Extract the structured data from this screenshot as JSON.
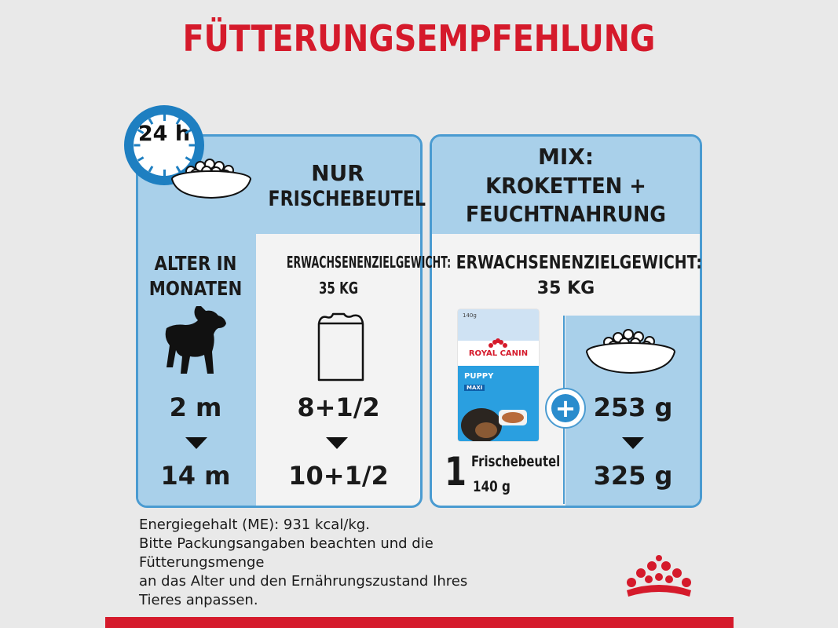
{
  "title": "FÜTTERUNGSEMPFEHLUNG",
  "clock": {
    "label": "24 h"
  },
  "left_panel": {
    "header": [
      "NUR",
      "FRISCHEBEUTEL"
    ],
    "age_label": [
      "ALTER IN",
      "MONATEN"
    ],
    "weight_label": "ERWACHSENENZIELGEWICHT:",
    "weight_value": "35 KG",
    "age_start": "2 m",
    "age_end": "14 m",
    "pouch_start": "8+1/2",
    "pouch_end": "10+1/2"
  },
  "right_panel": {
    "header": [
      "MIX:",
      "KROKETTEN +",
      "FEUCHTNAHRUNG"
    ],
    "weight_label": "ERWACHSENENZIELGEWICHT:",
    "weight_value": "35 KG",
    "pouch_count": "1",
    "pouch_label": "Frischebeutel",
    "pouch_weight": "140 g",
    "kibble_start": "253 g",
    "kibble_end": "325 g",
    "plus": "+"
  },
  "product": {
    "brand": "ROYAL CANIN",
    "weight": "140g",
    "name": "PUPPY",
    "variant": "MAXI"
  },
  "footer": [
    "Energiegehalt (ME): 931 kcal/kg.",
    "Bitte Packungsangaben beachten und die",
    "Fütterungsmenge",
    "an das Alter und den Ernährungszustand Ihres",
    "Tieres anpassen."
  ],
  "colors": {
    "brand_red": "#d51a2b",
    "panel_blue": "#a9d0ea",
    "border_blue": "#4a9bd1",
    "clock_blue": "#1e7fc1"
  }
}
